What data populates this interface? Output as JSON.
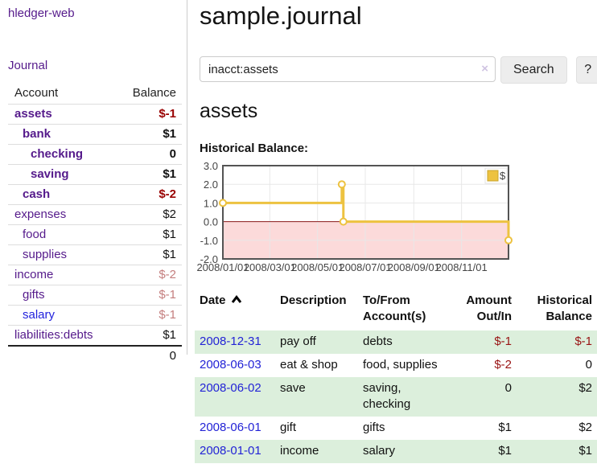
{
  "app": {
    "brand": "hledger-web",
    "nav_journal": "Journal"
  },
  "sidebar": {
    "header": {
      "account": "Account",
      "balance": "Balance"
    },
    "accounts": [
      {
        "label": "assets",
        "depth": 0,
        "bold": true,
        "name_color": "purple",
        "balance": "$-1",
        "balance_style": "neg"
      },
      {
        "label": "bank",
        "depth": 1,
        "bold": true,
        "name_color": "purple",
        "balance": "$1",
        "balance_style": "black"
      },
      {
        "label": "checking",
        "depth": 2,
        "bold": true,
        "name_color": "purple",
        "balance": "0",
        "balance_style": "black"
      },
      {
        "label": "saving",
        "depth": 2,
        "bold": true,
        "name_color": "purple",
        "balance": "$1",
        "balance_style": "black"
      },
      {
        "label": "cash",
        "depth": 1,
        "bold": true,
        "name_color": "purple",
        "balance": "$-2",
        "balance_style": "neg"
      },
      {
        "label": "expenses",
        "depth": 0,
        "bold": false,
        "name_color": "purple",
        "balance": "$2",
        "balance_style": "black"
      },
      {
        "label": "food",
        "depth": 1,
        "bold": false,
        "name_color": "purple",
        "balance": "$1",
        "balance_style": "black"
      },
      {
        "label": "supplies",
        "depth": 1,
        "bold": false,
        "name_color": "purple",
        "balance": "$1",
        "balance_style": "black"
      },
      {
        "label": "income",
        "depth": 0,
        "bold": false,
        "name_color": "purple",
        "balance": "$-2",
        "balance_style": "negmuted"
      },
      {
        "label": "gifts",
        "depth": 1,
        "bold": false,
        "name_color": "purple",
        "balance": "$-1",
        "balance_style": "negmuted"
      },
      {
        "label": "salary",
        "depth": 1,
        "bold": false,
        "name_color": "blue",
        "balance": "$-1",
        "balance_style": "negmuted"
      },
      {
        "label": "liabilities:debts",
        "depth": 0,
        "bold": false,
        "name_color": "purple",
        "balance": "$1",
        "balance_style": "black"
      }
    ],
    "total": "0"
  },
  "header": {
    "title": "sample.journal"
  },
  "search": {
    "value": "inacct:assets",
    "clear_icon": "×",
    "button_label": "Search",
    "help_label": "?"
  },
  "account_page": {
    "heading": "assets",
    "chart_label": "Historical Balance:"
  },
  "chart_data": {
    "type": "line",
    "title": "Historical Balance",
    "step": true,
    "series": [
      {
        "name": "$",
        "color": "#edc240",
        "points": [
          [
            "2008-01-01",
            1
          ],
          [
            "2008-06-01",
            2
          ],
          [
            "2008-06-03",
            0
          ],
          [
            "2008-12-31",
            -1
          ]
        ]
      }
    ],
    "x_start": "2008-01-01",
    "x_range_days": 365,
    "x_ticks": [
      {
        "label": "2008/01/01",
        "day": 0
      },
      {
        "label": "2008/03/01",
        "day": 60
      },
      {
        "label": "2008/05/01",
        "day": 121
      },
      {
        "label": "2008/07/01",
        "day": 182
      },
      {
        "label": "2008/09/01",
        "day": 244
      },
      {
        "label": "2008/11/01",
        "day": 305
      }
    ],
    "y_ticks": [
      "3.0",
      "2.0",
      "1.0",
      "0.0",
      "-1.0",
      "-2.0"
    ],
    "ylim": [
      -2,
      3
    ],
    "grid": true,
    "legend": {
      "label": "$",
      "position": "top-right"
    },
    "colors": {
      "line": "#edc240",
      "marker_fill": "#ffffff",
      "negative_region": "#fcdada",
      "zero_line": "#8b1a1a",
      "gridline": "#e8e8e8",
      "border": "#545454",
      "tick_text": "#444444"
    }
  },
  "register": {
    "columns": [
      "Date",
      "Description",
      "To/From Account(s)",
      "Amount Out/In",
      "Historical Balance"
    ],
    "rows": [
      {
        "date": "2008-12-31",
        "description": "pay off",
        "accounts": "debts",
        "amount": "$-1",
        "amount_neg": true,
        "balance": "$-1",
        "balance_neg": true
      },
      {
        "date": "2008-06-03",
        "description": "eat & shop",
        "accounts": "food, supplies",
        "amount": "$-2",
        "amount_neg": true,
        "balance": "0",
        "balance_neg": false
      },
      {
        "date": "2008-06-02",
        "description": "save",
        "accounts": "saving, checking",
        "amount": "0",
        "amount_neg": false,
        "balance": "$2",
        "balance_neg": false
      },
      {
        "date": "2008-06-01",
        "description": "gift",
        "accounts": "gifts",
        "amount": "$1",
        "amount_neg": false,
        "balance": "$2",
        "balance_neg": false
      },
      {
        "date": "2008-01-01",
        "description": "income",
        "accounts": "salary",
        "amount": "$1",
        "amount_neg": false,
        "balance": "$1",
        "balance_neg": false
      }
    ]
  }
}
